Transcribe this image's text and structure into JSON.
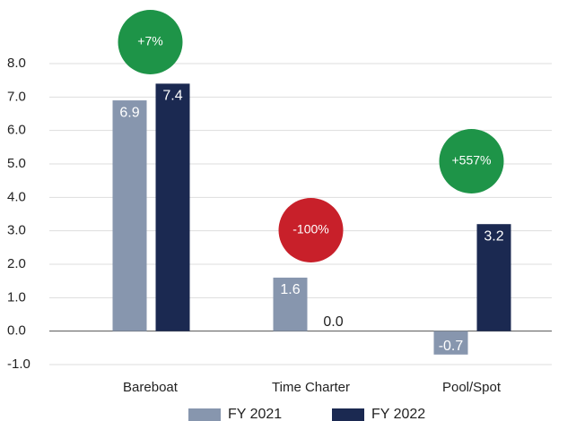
{
  "chart_data": {
    "type": "bar",
    "categories": [
      "Bareboat",
      "Time Charter",
      "Pool/Spot"
    ],
    "series": [
      {
        "name": "FY 2021",
        "color": "#8796ae",
        "values": [
          6.9,
          1.6,
          -0.7
        ],
        "value_labels": [
          "6.9",
          "1.6",
          "-0.7"
        ]
      },
      {
        "name": "FY 2022",
        "color": "#1b2951",
        "values": [
          7.4,
          0,
          3.2
        ],
        "value_labels": [
          "7.4",
          "0.0",
          "3.2"
        ]
      }
    ],
    "ylim": [
      -1,
      8
    ],
    "yticks": [
      {
        "value": -1,
        "label": "-1.0"
      },
      {
        "value": 0,
        "label": "0.0"
      },
      {
        "value": 1,
        "label": "1.0"
      },
      {
        "value": 2,
        "label": "2.0"
      },
      {
        "value": 3,
        "label": "3.0"
      },
      {
        "value": 4,
        "label": "4.0"
      },
      {
        "value": 5,
        "label": "5.0"
      },
      {
        "value": 6,
        "label": "6.0"
      },
      {
        "value": 7,
        "label": "7.0"
      },
      {
        "value": 8,
        "label": "8.0"
      }
    ],
    "grid": true,
    "annotations": [
      {
        "text": "+7%",
        "color": "#1e9448"
      },
      {
        "text": "-100%",
        "color": "#c8202a"
      },
      {
        "text": "+557%",
        "color": "#1e9448"
      }
    ]
  }
}
